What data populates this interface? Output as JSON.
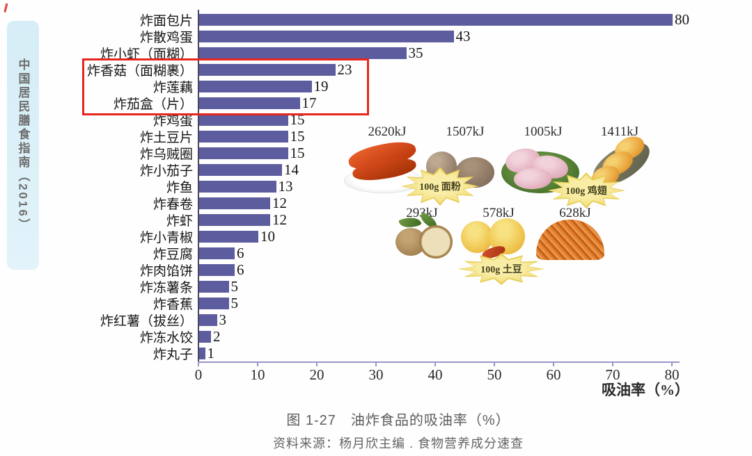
{
  "sidebar": {
    "label": "中国居民膳食指南（2016）"
  },
  "chart_data": {
    "type": "bar",
    "orientation": "horizontal",
    "title": "油炸食品的吸油率（%）",
    "categories": [
      "炸面包片",
      "炸散鸡蛋",
      "炸小虾（面糊）",
      "炸香菇（面糊裹）",
      "炸莲藕",
      "炸茄盒（片）",
      "炸鸡蛋",
      "炸土豆片",
      "炸乌贼圈",
      "炸小茄子",
      "炸鱼",
      "炸春卷",
      "炸虾",
      "炸小青椒",
      "炸豆腐",
      "炸肉馅饼",
      "炸冻薯条",
      "炸香蕉",
      "炸红薯（拔丝）",
      "炸冻水饺",
      "炸丸子"
    ],
    "values": [
      80,
      43,
      35,
      23,
      19,
      17,
      15,
      15,
      15,
      14,
      13,
      12,
      12,
      10,
      6,
      6,
      5,
      5,
      3,
      2,
      1
    ],
    "xlabel": "吸油率（%）",
    "xlim": [
      0,
      80
    ],
    "xticks": [
      0,
      10,
      20,
      30,
      40,
      50,
      60,
      70,
      80
    ],
    "bar_color": "#5d5c9f",
    "grid": false,
    "legend": null,
    "highlight": {
      "rows": [
        3,
        4,
        5
      ],
      "color": "#e8251d",
      "note": "red box around 炸香菇（面糊裹）23, 炸莲藕 19, 炸茄盒（片）17"
    }
  },
  "food_panel": {
    "items": [
      {
        "kj": "2620kJ",
        "name": "fried-bread-on-plate"
      },
      {
        "kj": "1507kJ",
        "name": "steamed-buns"
      },
      {
        "kj": "1005kJ",
        "name": "raw-chicken-wings"
      },
      {
        "kj": "1411kJ",
        "name": "fried-chicken-wings"
      },
      {
        "kj": "293kJ",
        "name": "raw-potatoes"
      },
      {
        "kj": "578kJ",
        "name": "fried-potato-chunks"
      },
      {
        "kj": "628kJ",
        "name": "shredded-fried-potato"
      }
    ],
    "bursts": [
      {
        "label": "100g 面粉"
      },
      {
        "label": "100g 鸡翅"
      },
      {
        "label": "100g 土豆"
      }
    ]
  },
  "caption": {
    "figure": "图 1-27　油炸食品的吸油率（%）",
    "source": "资料来源：杨月欣主编 . 食物营养成分速查"
  }
}
